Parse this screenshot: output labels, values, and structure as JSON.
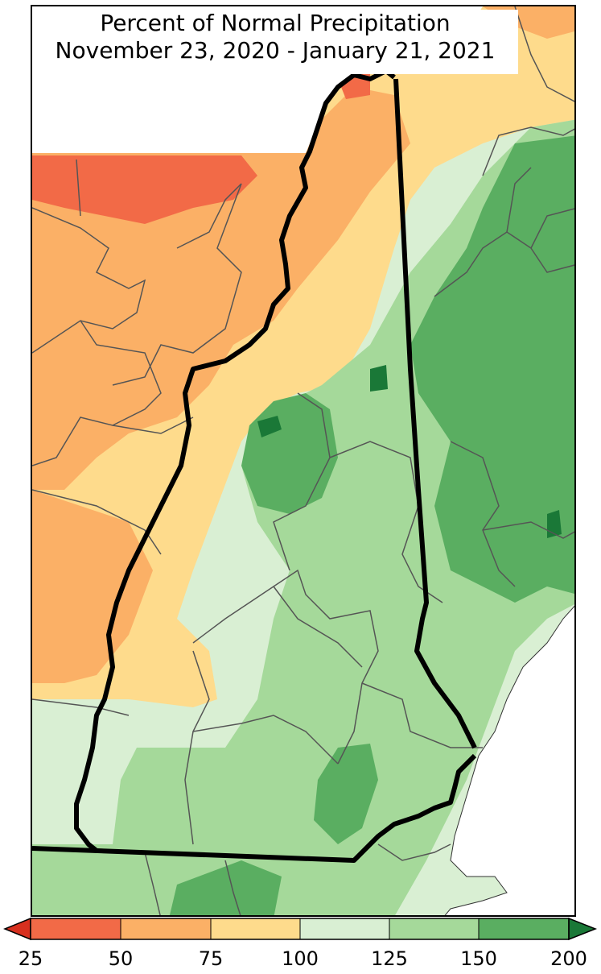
{
  "title": {
    "line1": "Percent of Normal Precipitation",
    "line2": "November 23, 2020 - January 21, 2021"
  },
  "legend": {
    "ticks": [
      "25",
      "50",
      "75",
      "100",
      "125",
      "150",
      "200"
    ],
    "bins": [
      {
        "range": "25-50",
        "color": "#f26a47"
      },
      {
        "range": "50-75",
        "color": "#fbb066"
      },
      {
        "range": "75-100",
        "color": "#fedb8c"
      },
      {
        "range": "100-125",
        "color": "#d9efd3"
      },
      {
        "range": "125-150",
        "color": "#a5d99a"
      },
      {
        "range": "150-200",
        "color": "#5aae61"
      }
    ],
    "under_color": "#d7301f",
    "over_color": "#1a7837"
  },
  "colors": {
    "border": "#000000",
    "county_line": "#555555",
    "ocean": "#ffffff"
  }
}
